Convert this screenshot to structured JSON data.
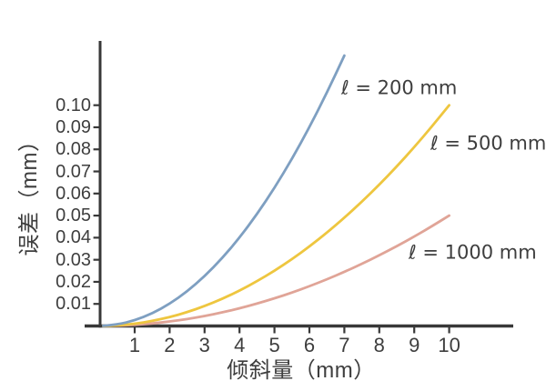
{
  "chart_data": {
    "type": "line",
    "title": "",
    "xlabel": "倾斜量（mm）",
    "ylabel": "误差（mm）",
    "background_color": "#ffffff",
    "axis_color": "#383838",
    "text_color": "#3e3e3e",
    "grid": false,
    "legend_position": "inline-annotations",
    "xlim": [
      0,
      11.8
    ],
    "ylim": [
      0,
      0.129
    ],
    "xtick_values": [
      1,
      2,
      3,
      4,
      5,
      6,
      7,
      8,
      9,
      10
    ],
    "xtick_labels": [
      "1",
      "2",
      "3",
      "4",
      "5",
      "6",
      "7",
      "8",
      "9",
      "10"
    ],
    "ytick_values": [
      0.01,
      0.02,
      0.03,
      0.04,
      0.05,
      0.06,
      0.07,
      0.08,
      0.09,
      0.1
    ],
    "ytick_labels": [
      "0.01",
      "0.02",
      "0.03",
      "0.04",
      "0.05",
      "0.06",
      "0.07",
      "0.08",
      "0.09",
      "0.10"
    ],
    "series": [
      {
        "name": "l-200mm",
        "label": "ℓ = 200 mm",
        "length_mm": 200,
        "color": "#7e9fc1",
        "x": [
          0.1,
          0.5,
          1,
          1.5,
          2,
          2.5,
          3,
          3.5,
          4,
          4.5,
          5,
          5.5,
          6,
          6.5,
          7
        ],
        "y": [
          2.5e-05,
          0.000625,
          0.0025,
          0.005625,
          0.01,
          0.015625,
          0.0225,
          0.030625,
          0.04,
          0.050625,
          0.0625,
          0.075625,
          0.09,
          0.105625,
          0.1225
        ]
      },
      {
        "name": "l-500mm",
        "label": "ℓ = 500 mm",
        "length_mm": 500,
        "color": "#eec63f",
        "x": [
          0.1,
          0.5,
          1,
          1.5,
          2,
          2.5,
          3,
          3.5,
          4,
          4.5,
          5,
          5.5,
          6,
          6.5,
          7,
          7.5,
          8,
          8.5,
          9,
          9.5,
          10
        ],
        "y": [
          1e-05,
          0.00025,
          0.001,
          0.00225,
          0.004,
          0.00625,
          0.009,
          0.01225,
          0.016,
          0.02025,
          0.025,
          0.03025,
          0.036,
          0.04225,
          0.049,
          0.05625,
          0.064,
          0.07225,
          0.081,
          0.09025,
          0.1
        ]
      },
      {
        "name": "l-1000mm",
        "label": "ℓ = 1000 mm",
        "length_mm": 1000,
        "color": "#e0a497",
        "x": [
          0.1,
          0.5,
          1,
          1.5,
          2,
          2.5,
          3,
          3.5,
          4,
          4.5,
          5,
          5.5,
          6,
          6.5,
          7,
          7.5,
          8,
          8.5,
          9,
          9.5,
          10
        ],
        "y": [
          5e-06,
          0.000125,
          0.0005,
          0.001125,
          0.002,
          0.003125,
          0.0045,
          0.006125,
          0.008,
          0.010125,
          0.0125,
          0.015125,
          0.018,
          0.021125,
          0.0245,
          0.028125,
          0.032,
          0.036125,
          0.0405,
          0.045125,
          0.05
        ]
      }
    ]
  }
}
